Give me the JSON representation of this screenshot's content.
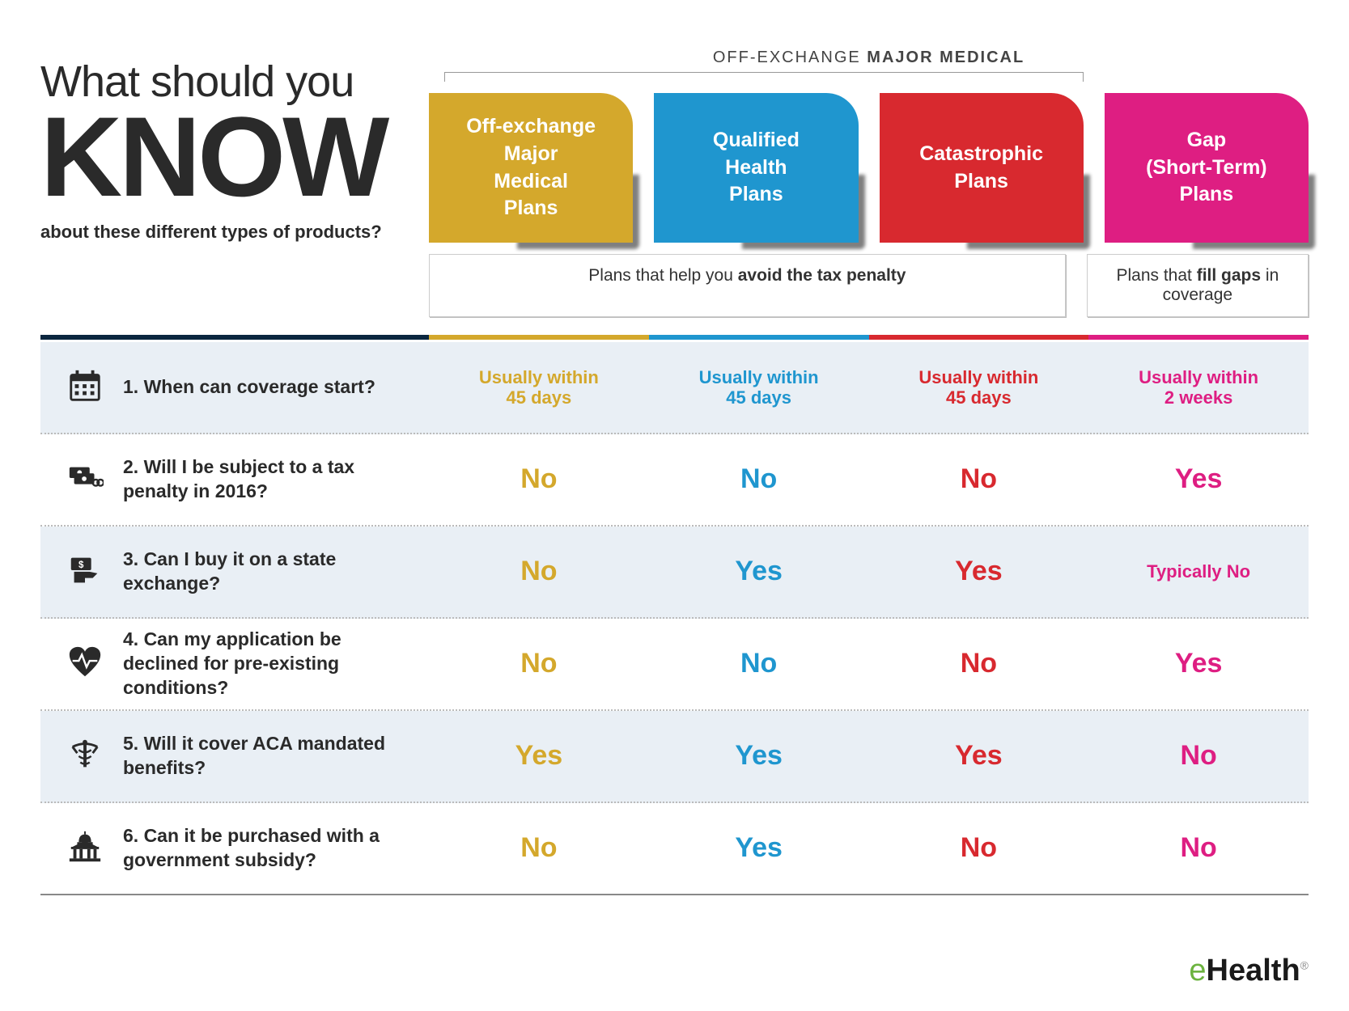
{
  "title": {
    "line1": "What should you",
    "know": "KNOW",
    "sub": "about these different types of products?"
  },
  "bracket": {
    "prefix": "OFF-EXCHANGE ",
    "bold": "MAJOR MEDICAL"
  },
  "plans": [
    {
      "key": "off",
      "label": "Off-exchange\nMajor\nMedical\nPlans",
      "color": "#d4a82c"
    },
    {
      "key": "qhp",
      "label": "Qualified\nHealth\nPlans",
      "color": "#1f96cf"
    },
    {
      "key": "cat",
      "label": "Catastrophic\nPlans",
      "color": "#d8292f"
    },
    {
      "key": "gap",
      "label": "Gap\n(Short-Term)\nPlans",
      "color": "#de1e82"
    }
  ],
  "subcards": {
    "wide_pre": "Plans that help you ",
    "wide_bold": "avoid the tax penalty",
    "narrow_pre": "Plans that ",
    "narrow_bold": "fill gaps",
    "narrow_post": " in coverage"
  },
  "questions": [
    {
      "n": "1",
      "text": "1. When can coverage start?",
      "icon": "calendar",
      "answers": [
        "Usually within\n45 days",
        "Usually within\n45 days",
        "Usually within\n45 days",
        "Usually within\n2 weeks"
      ],
      "small": true
    },
    {
      "n": "2",
      "text": "2. Will I be subject to a tax penalty in 2016?",
      "icon": "money",
      "answers": [
        "No",
        "No",
        "No",
        "Yes"
      ],
      "small": false
    },
    {
      "n": "3",
      "text": "3. Can I buy it on a state exchange?",
      "icon": "hand",
      "answers": [
        "No",
        "Yes",
        "Yes",
        "Typically No"
      ],
      "small": false,
      "smallIdx": [
        3
      ]
    },
    {
      "n": "4",
      "text": "4. Can my application be declined for pre-existing conditions?",
      "icon": "heart",
      "answers": [
        "No",
        "No",
        "No",
        "Yes"
      ],
      "small": false
    },
    {
      "n": "5",
      "text": "5. Will it cover ACA mandated benefits?",
      "icon": "caduceus",
      "answers": [
        "Yes",
        "Yes",
        "Yes",
        "No"
      ],
      "small": false
    },
    {
      "n": "6",
      "text": "6. Can it be purchased with a government subsidy?",
      "icon": "capitol",
      "answers": [
        "No",
        "Yes",
        "No",
        "No"
      ],
      "small": false
    }
  ],
  "logo": {
    "e": "e",
    "health": "Health"
  },
  "colors": {
    "navy": "#0b263f",
    "row_shade": "#e9eff5",
    "plan_colors": [
      "#d4a82c",
      "#1f96cf",
      "#d8292f",
      "#de1e82"
    ]
  }
}
